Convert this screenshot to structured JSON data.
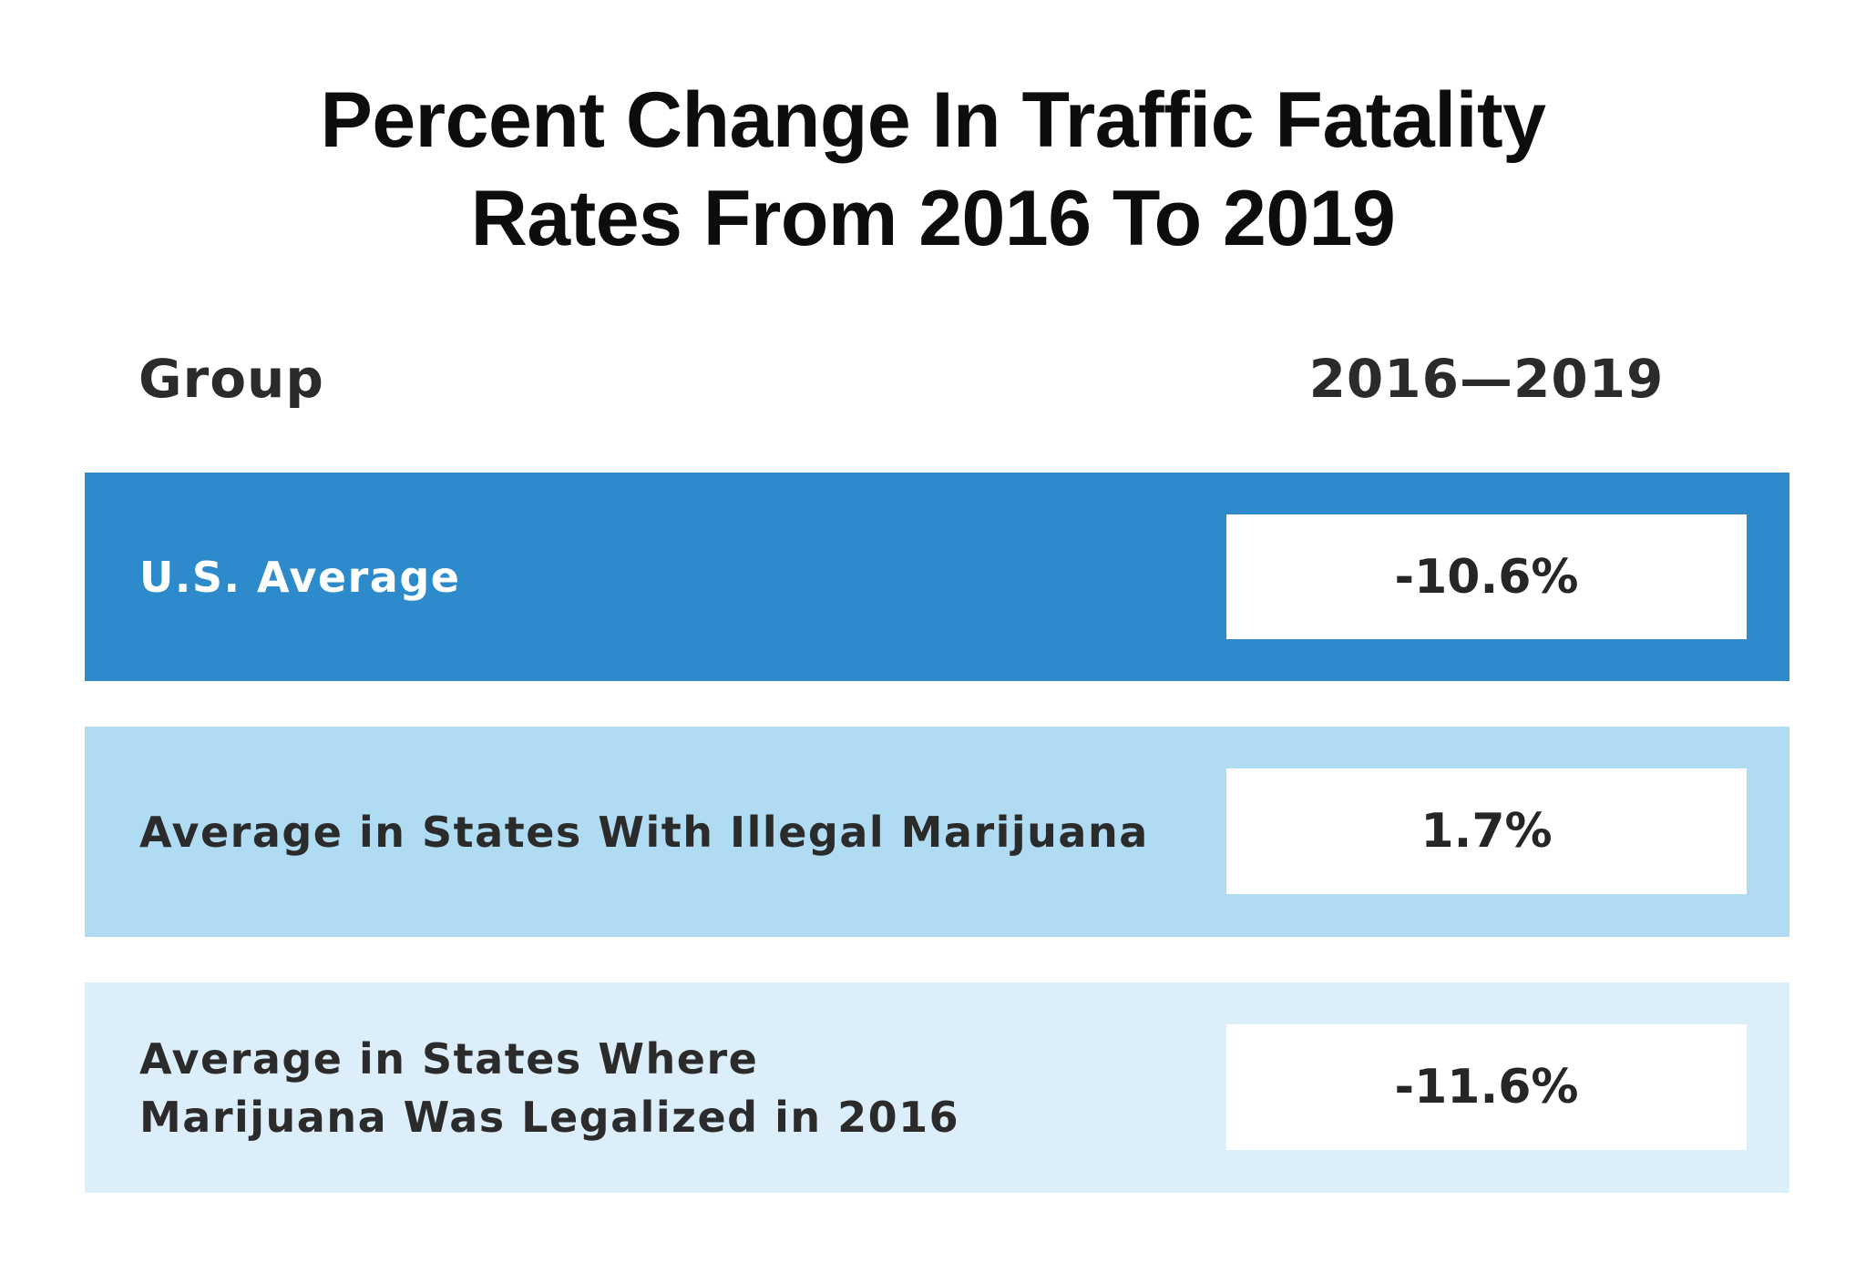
{
  "chart_data": {
    "type": "table",
    "title": "Percent Change In Traffic Fatality Rates From 2016 To 2019",
    "title_lines": [
      "Percent Change In Traffic Fatality",
      "Rates From 2016 To 2019"
    ],
    "columns": [
      "Group",
      "2016—2019"
    ],
    "rows": [
      {
        "group": "U.S. Average",
        "group_lines": [
          "U.S. Average"
        ],
        "value": -10.6,
        "value_label": "-10.6%",
        "bg_color": "#2e8bcb",
        "text_color": "#ffffff"
      },
      {
        "group": "Average in States With Illegal Marijuana",
        "group_lines": [
          "Average in States With Illegal Marijuana"
        ],
        "value": 1.7,
        "value_label": "1.7%",
        "bg_color": "#afdbf3",
        "text_color": "#2b2b2b"
      },
      {
        "group": "Average in States Where Marijuana Was Legalized in 2016",
        "group_lines": [
          "Average in States Where",
          "Marijuana Was Legalized in 2016"
        ],
        "value": -11.6,
        "value_label": "-11.6%",
        "bg_color": "#ddeefb",
        "text_color": "#2b2b2b"
      }
    ]
  }
}
